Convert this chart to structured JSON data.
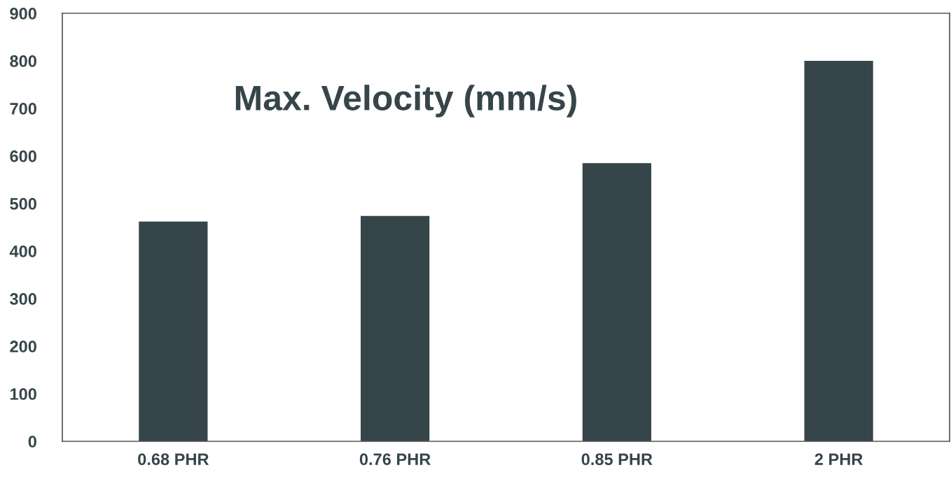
{
  "chart_data": {
    "type": "bar",
    "title": "Max. Velocity (mm/s)",
    "categories": [
      "0.68 PHR",
      "0.76 PHR",
      "0.85 PHR",
      "2 PHR"
    ],
    "values": [
      462,
      474,
      585,
      800
    ],
    "color": "#36454a",
    "ylim": [
      0,
      900
    ],
    "yticks": [
      0,
      100,
      200,
      300,
      400,
      500,
      600,
      700,
      800,
      900
    ],
    "grid": false,
    "legend": false
  }
}
